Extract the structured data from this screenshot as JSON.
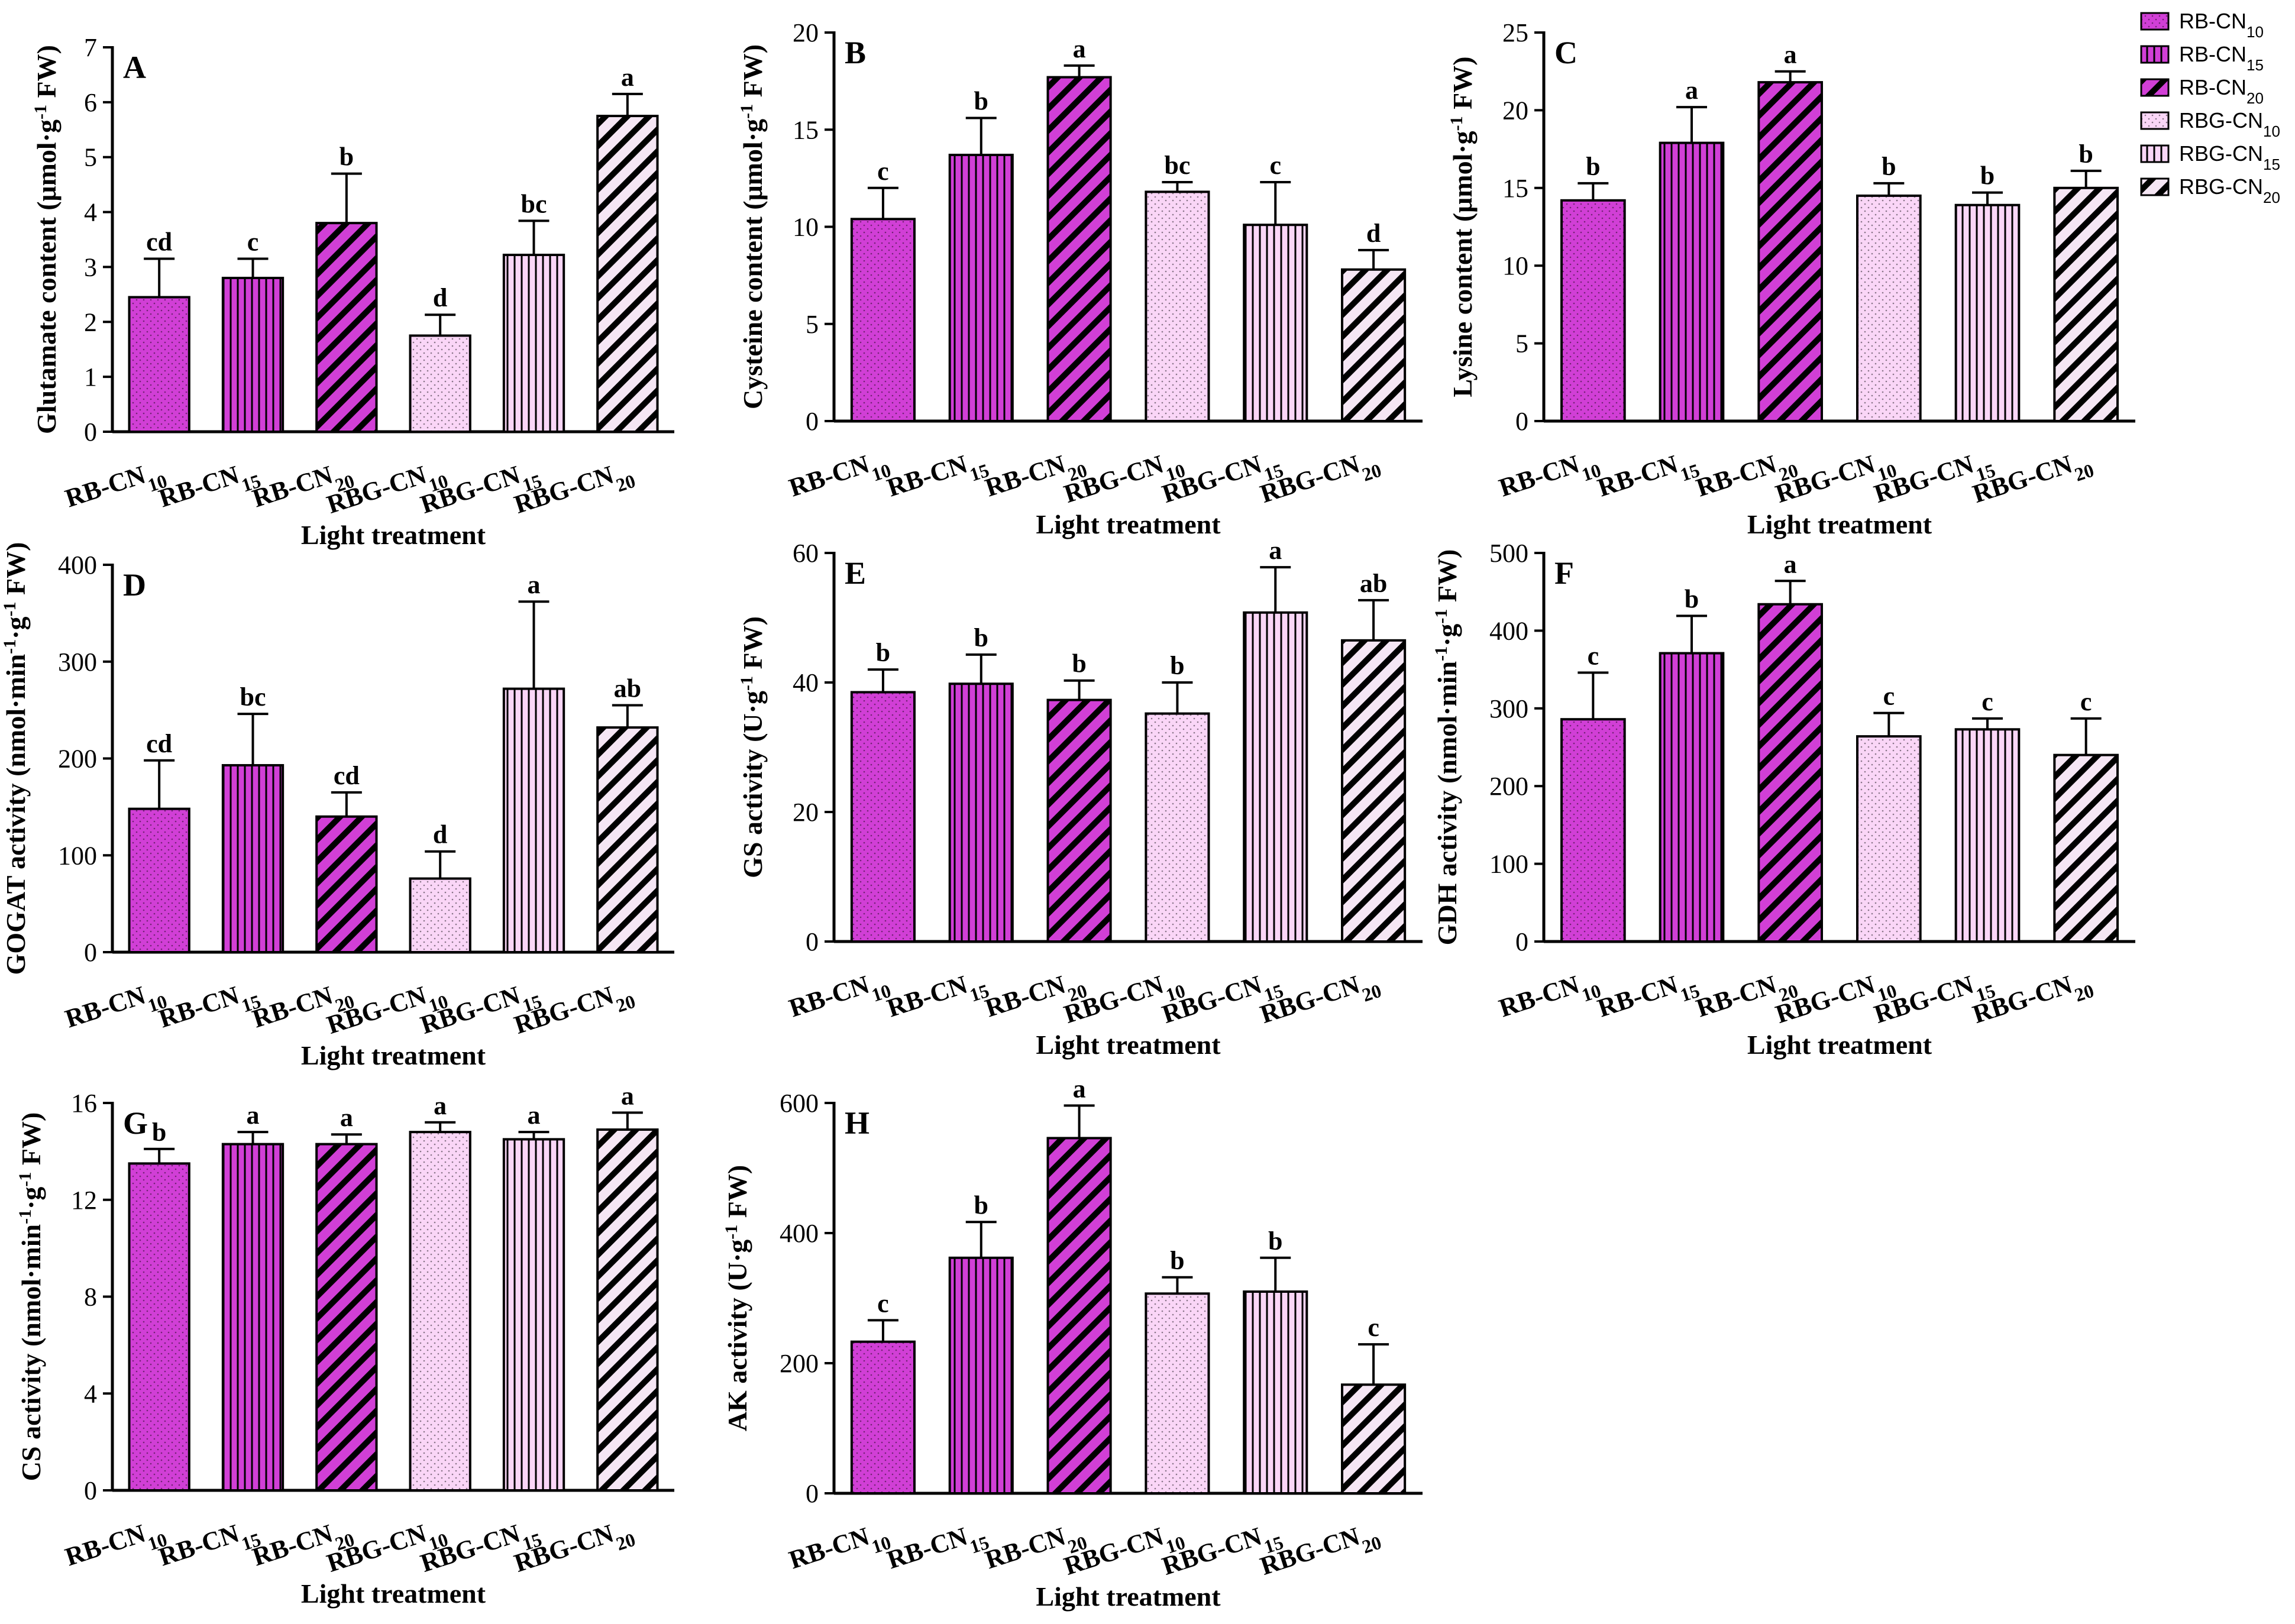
{
  "categories": [
    "RB-CN10",
    "RB-CN15",
    "RB-CN20",
    "RBG-CN10",
    "RBG-CN15",
    "RBG-CN20"
  ],
  "category_labels": [
    {
      "base": "RB-CN",
      "sub": "10"
    },
    {
      "base": "RB-CN",
      "sub": "15"
    },
    {
      "base": "RB-CN",
      "sub": "20"
    },
    {
      "base": "RBG-CN",
      "sub": "10"
    },
    {
      "base": "RBG-CN",
      "sub": "15"
    },
    {
      "base": "RBG-CN",
      "sub": "20"
    }
  ],
  "xlabel": "Light treatment",
  "legend": {
    "placement": "top-right",
    "entries": [
      {
        "base": "RB-CN",
        "sub": "10"
      },
      {
        "base": "RB-CN",
        "sub": "15"
      },
      {
        "base": "RB-CN",
        "sub": "20"
      },
      {
        "base": "RBG-CN",
        "sub": "10"
      },
      {
        "base": "RBG-CN",
        "sub": "15"
      },
      {
        "base": "RBG-CN",
        "sub": "20"
      }
    ]
  },
  "styles": [
    {
      "fill": "#d13fd6",
      "pattern": "dots"
    },
    {
      "fill": "#d13fd6",
      "pattern": "vlines"
    },
    {
      "fill": "#d13fd6",
      "pattern": "diag"
    },
    {
      "fill": "#fad6f7",
      "pattern": "dots"
    },
    {
      "fill": "#fad6f7",
      "pattern": "vlines"
    },
    {
      "fill": "#f5e6f4",
      "pattern": "diag"
    }
  ],
  "chart_data": [
    {
      "panel": "A",
      "type": "bar",
      "ylabel": "Glutamate content (μmol·g-1 FW)",
      "ylim": [
        0,
        7
      ],
      "ticks": [
        0,
        1,
        2,
        3,
        4,
        5,
        6,
        7
      ],
      "values": [
        2.45,
        2.8,
        3.8,
        1.75,
        3.22,
        5.75
      ],
      "errors": [
        0.7,
        0.35,
        0.9,
        0.38,
        0.62,
        0.4
      ],
      "letters": [
        "cd",
        "c",
        "b",
        "d",
        "bc",
        "a"
      ]
    },
    {
      "panel": "B",
      "type": "bar",
      "ylabel": "Cysteine content (μmol·g-1 FW)",
      "ylim": [
        0,
        20
      ],
      "ticks": [
        0,
        5,
        10,
        15,
        20
      ],
      "values": [
        10.4,
        13.7,
        17.7,
        11.8,
        10.1,
        7.8
      ],
      "errors": [
        1.6,
        1.9,
        0.6,
        0.5,
        2.2,
        1.0
      ],
      "letters": [
        "c",
        "b",
        "a",
        "bc",
        "c",
        "d"
      ]
    },
    {
      "panel": "C",
      "type": "bar",
      "ylabel": "Lysine content (μmol·g-1 FW)",
      "ylim": [
        0,
        25
      ],
      "ticks": [
        0,
        5,
        10,
        15,
        20,
        25
      ],
      "values": [
        14.2,
        17.9,
        21.8,
        14.5,
        13.9,
        15.0
      ],
      "errors": [
        1.1,
        2.3,
        0.7,
        0.8,
        0.8,
        1.1
      ],
      "letters": [
        "b",
        "a",
        "a",
        "b",
        "b",
        "b"
      ]
    },
    {
      "panel": "D",
      "type": "bar",
      "ylabel": "GOGAT activity (nmol·min-1·g-1 FW)",
      "ylim": [
        0,
        400
      ],
      "ticks": [
        0,
        100,
        200,
        300,
        400
      ],
      "values": [
        148,
        193,
        140,
        76,
        272,
        232
      ],
      "errors": [
        50,
        53,
        25,
        28,
        90,
        23
      ],
      "letters": [
        "cd",
        "bc",
        "cd",
        "d",
        "a",
        "ab"
      ]
    },
    {
      "panel": "E",
      "type": "bar",
      "ylabel": "GS activity (U·g-1 FW)",
      "ylim": [
        0,
        60
      ],
      "ticks": [
        0,
        20,
        40,
        60
      ],
      "values": [
        38.5,
        39.8,
        37.3,
        35.2,
        50.8,
        46.5
      ],
      "errors": [
        3.5,
        4.5,
        3.0,
        4.8,
        7.0,
        6.2
      ],
      "letters": [
        "b",
        "b",
        "b",
        "b",
        "a",
        "ab"
      ]
    },
    {
      "panel": "F",
      "type": "bar",
      "ylabel": "GDH activity (nmol·min-1·g-1 FW)",
      "ylim": [
        0,
        500
      ],
      "ticks": [
        0,
        100,
        200,
        300,
        400,
        500
      ],
      "values": [
        286,
        371,
        434,
        264,
        273,
        240
      ],
      "errors": [
        60,
        48,
        30,
        30,
        14,
        47
      ],
      "letters": [
        "c",
        "b",
        "a",
        "c",
        "c",
        "c"
      ]
    },
    {
      "panel": "G",
      "type": "bar",
      "ylabel": "CS activity (nmol·min-1·g-1 FW)",
      "ylim": [
        0,
        16
      ],
      "ticks": [
        0,
        4,
        8,
        12,
        16
      ],
      "values": [
        13.5,
        14.3,
        14.3,
        14.8,
        14.5,
        14.9
      ],
      "errors": [
        0.6,
        0.5,
        0.4,
        0.4,
        0.3,
        0.7
      ],
      "letters": [
        "b",
        "a",
        "a",
        "a",
        "a",
        "a"
      ]
    },
    {
      "panel": "H",
      "type": "bar",
      "ylabel": "AK activity (U·g-1 FW)",
      "ylim": [
        0,
        600
      ],
      "ticks": [
        0,
        200,
        400,
        600
      ],
      "values": [
        233,
        362,
        546,
        307,
        310,
        167
      ],
      "errors": [
        33,
        55,
        50,
        25,
        52,
        62
      ],
      "letters": [
        "c",
        "b",
        "a",
        "b",
        "b",
        "c"
      ]
    }
  ]
}
